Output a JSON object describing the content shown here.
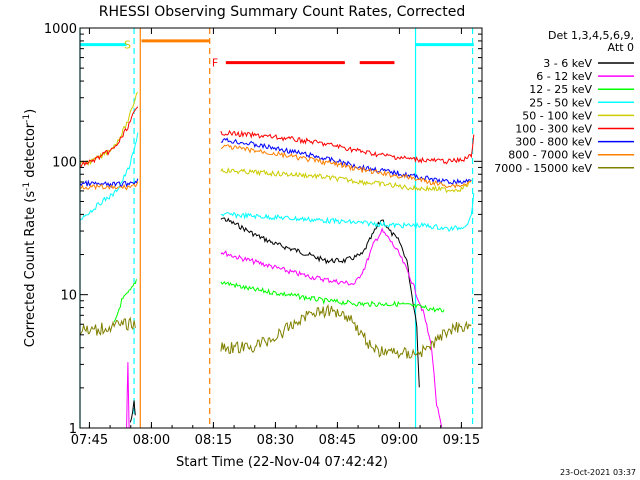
{
  "chart_data": {
    "type": "line",
    "title": "RHESSI Observing Summary Count Rates, Corrected",
    "xlabel": "Start Time (22-Nov-04 07:42:42)",
    "ylabel_main": "Corrected Count Rate (s",
    "ylabel_sup1": "-1",
    "ylabel_mid": " detector",
    "ylabel_sup2": "-1",
    "ylabel_end": ")",
    "yscale": "log",
    "ylim": [
      1,
      1000
    ],
    "xlim": [
      7.712,
      9.333
    ],
    "x_ticks": [
      {
        "x": 7.75,
        "label": "07:45"
      },
      {
        "x": 8.0,
        "label": "08:00"
      },
      {
        "x": 8.25,
        "label": "08:15"
      },
      {
        "x": 8.5,
        "label": "08:30"
      },
      {
        "x": 8.75,
        "label": "08:45"
      },
      {
        "x": 9.0,
        "label": "09:00"
      },
      {
        "x": 9.25,
        "label": "09:15"
      }
    ],
    "y_ticks": [
      {
        "y": 1,
        "label": "1"
      },
      {
        "y": 10,
        "label": "10"
      },
      {
        "y": 100,
        "label": "100"
      },
      {
        "y": 1000,
        "label": "1000"
      }
    ],
    "legend": {
      "header1": "Det 1,3,4,5,6,9,",
      "header2": "Att 0",
      "position": "right"
    },
    "series": [
      {
        "name": "3 - 6 keV",
        "color": "#000000",
        "segments": [
          [
            [
              7.915,
              1.1
            ],
            [
              7.925,
              1.3
            ],
            [
              7.93,
              1.6
            ],
            [
              7.935,
              1.2
            ]
          ],
          [
            [
              8.28,
              38
            ],
            [
              8.35,
              33
            ],
            [
              8.42,
              28
            ],
            [
              8.5,
              24
            ],
            [
              8.6,
              21
            ],
            [
              8.7,
              18
            ],
            [
              8.78,
              18
            ],
            [
              8.85,
              20
            ],
            [
              8.9,
              30
            ],
            [
              8.93,
              37
            ],
            [
              8.96,
              30
            ],
            [
              9.0,
              25
            ],
            [
              9.03,
              18
            ],
            [
              9.05,
              10
            ],
            [
              9.07,
              6
            ],
            [
              9.08,
              2
            ]
          ]
        ]
      },
      {
        "name": "6 - 12 keV",
        "color": "#ff00ff",
        "segments": [
          [
            [
              7.9,
              1.0
            ],
            [
              7.905,
              3.2
            ],
            [
              7.91,
              1.0
            ]
          ],
          [
            [
              8.28,
              21
            ],
            [
              8.35,
              19
            ],
            [
              8.45,
              17
            ],
            [
              8.55,
              15
            ],
            [
              8.65,
              13.5
            ],
            [
              8.75,
              12.5
            ],
            [
              8.82,
              12
            ],
            [
              8.86,
              16
            ],
            [
              8.9,
              25
            ],
            [
              8.93,
              30
            ],
            [
              8.96,
              26
            ],
            [
              9.0,
              20
            ],
            [
              9.04,
              14
            ],
            [
              9.07,
              10
            ],
            [
              9.1,
              7
            ],
            [
              9.13,
              4
            ],
            [
              9.15,
              1.5
            ],
            [
              9.17,
              1.0
            ]
          ]
        ]
      },
      {
        "name": "12 - 25 keV",
        "color": "#00ff00",
        "segments": [
          [
            [
              7.85,
              6
            ],
            [
              7.88,
              9
            ],
            [
              7.92,
              11
            ],
            [
              7.94,
              13
            ]
          ],
          [
            [
              8.28,
              12.5
            ],
            [
              8.4,
              11
            ],
            [
              8.55,
              10
            ],
            [
              8.7,
              9
            ],
            [
              8.85,
              8.5
            ],
            [
              9.0,
              8.5
            ],
            [
              9.1,
              8
            ],
            [
              9.18,
              7.5
            ]
          ]
        ]
      },
      {
        "name": "25 - 50 keV",
        "color": "#00ffff",
        "segments": [
          [
            [
              7.712,
              37
            ],
            [
              7.76,
              43
            ],
            [
              7.8,
              50
            ],
            [
              7.85,
              57
            ],
            [
              7.88,
              70
            ],
            [
              7.91,
              90
            ],
            [
              7.94,
              140
            ],
            [
              7.945,
              170
            ]
          ],
          [
            [
              8.28,
              40
            ],
            [
              8.4,
              39
            ],
            [
              8.5,
              38
            ],
            [
              8.6,
              37
            ],
            [
              8.7,
              36
            ],
            [
              8.8,
              35
            ],
            [
              8.9,
              34
            ],
            [
              9.0,
              33
            ],
            [
              9.1,
              33
            ],
            [
              9.16,
              32
            ],
            [
              9.2,
              31
            ],
            [
              9.25,
              32
            ],
            [
              9.28,
              35
            ],
            [
              9.295,
              45
            ],
            [
              9.3,
              60
            ]
          ]
        ]
      },
      {
        "name": "50 - 100 keV",
        "color": "#cccc00",
        "segments": [
          [
            [
              7.712,
              95
            ],
            [
              7.76,
              100
            ],
            [
              7.8,
              110
            ],
            [
              7.85,
              130
            ],
            [
              7.88,
              160
            ],
            [
              7.91,
              210
            ],
            [
              7.93,
              280
            ],
            [
              7.945,
              340
            ]
          ],
          [
            [
              8.28,
              86
            ],
            [
              8.35,
              84
            ],
            [
              8.45,
              82
            ],
            [
              8.55,
              80
            ],
            [
              8.65,
              78
            ],
            [
              8.75,
              74
            ],
            [
              8.85,
              70
            ],
            [
              8.95,
              67
            ],
            [
              9.05,
              63
            ],
            [
              9.15,
              62
            ],
            [
              9.2,
              61
            ],
            [
              9.25,
              62
            ],
            [
              9.29,
              70
            ]
          ]
        ]
      },
      {
        "name": "100 - 300 keV",
        "color": "#ff0000",
        "segments": [
          [
            [
              7.712,
              94
            ],
            [
              7.76,
              100
            ],
            [
              7.8,
              110
            ],
            [
              7.85,
              125
            ],
            [
              7.88,
              150
            ],
            [
              7.91,
              190
            ],
            [
              7.93,
              230
            ],
            [
              7.945,
              250
            ]
          ],
          [
            [
              8.28,
              165
            ],
            [
              8.35,
              160
            ],
            [
              8.45,
              155
            ],
            [
              8.55,
              148
            ],
            [
              8.65,
              140
            ],
            [
              8.75,
              130
            ],
            [
              8.85,
              118
            ],
            [
              8.95,
              110
            ],
            [
              9.05,
              104
            ],
            [
              9.15,
              101
            ],
            [
              9.2,
              100
            ],
            [
              9.25,
              102
            ],
            [
              9.29,
              110
            ],
            [
              9.3,
              160
            ]
          ]
        ]
      },
      {
        "name": "300 - 800 keV",
        "color": "#0000ff",
        "segments": [
          [
            [
              7.712,
              68
            ],
            [
              7.76,
              68
            ],
            [
              7.8,
              67
            ],
            [
              7.85,
              67
            ],
            [
              7.9,
              68
            ],
            [
              7.93,
              70
            ],
            [
              7.945,
              72
            ]
          ],
          [
            [
              8.28,
              145
            ],
            [
              8.35,
              140
            ],
            [
              8.45,
              130
            ],
            [
              8.55,
              120
            ],
            [
              8.65,
              110
            ],
            [
              8.75,
              100
            ],
            [
              8.85,
              90
            ],
            [
              8.95,
              84
            ],
            [
              9.05,
              78
            ],
            [
              9.15,
              72
            ],
            [
              9.2,
              70
            ],
            [
              9.25,
              70
            ],
            [
              9.29,
              72
            ]
          ]
        ]
      },
      {
        "name": "800 - 7000 keV",
        "color": "#ff8000",
        "segments": [
          [
            [
              7.712,
              65
            ],
            [
              7.76,
              64
            ],
            [
              7.8,
              64
            ],
            [
              7.85,
              63
            ],
            [
              7.9,
              64
            ],
            [
              7.93,
              66
            ],
            [
              7.945,
              68
            ]
          ],
          [
            [
              8.28,
              130
            ],
            [
              8.35,
              125
            ],
            [
              8.45,
              118
            ],
            [
              8.55,
              110
            ],
            [
              8.65,
              102
            ],
            [
              8.75,
              95
            ],
            [
              8.85,
              86
            ],
            [
              8.95,
              80
            ],
            [
              9.05,
              75
            ],
            [
              9.15,
              68
            ],
            [
              9.2,
              66
            ],
            [
              9.25,
              66
            ],
            [
              9.29,
              70
            ]
          ]
        ]
      },
      {
        "name": "7000 - 15000 keV",
        "color": "#808000",
        "segments": [
          [
            [
              7.712,
              5.5
            ],
            [
              7.76,
              5.3
            ],
            [
              7.8,
              5.6
            ],
            [
              7.85,
              5.8
            ],
            [
              7.9,
              6.0
            ],
            [
              7.935,
              6.1
            ]
          ],
          [
            [
              8.28,
              4.0
            ],
            [
              8.4,
              4.0
            ],
            [
              8.5,
              4.8
            ],
            [
              8.6,
              6.5
            ],
            [
              8.65,
              7.5
            ],
            [
              8.75,
              7.5
            ],
            [
              8.8,
              6.8
            ],
            [
              8.85,
              5.0
            ],
            [
              8.9,
              3.8
            ],
            [
              9.05,
              3.6
            ],
            [
              9.1,
              3.8
            ],
            [
              9.15,
              4.5
            ],
            [
              9.2,
              5.5
            ],
            [
              9.25,
              5.8
            ],
            [
              9.29,
              6.0
            ]
          ]
        ]
      }
    ],
    "flag_bars": [
      {
        "label": "S",
        "label_color": "#cccc00",
        "color": "#00ffff",
        "y": 750,
        "segments": [
          [
            7.712,
            7.9
          ],
          [
            9.065,
            9.3
          ]
        ]
      },
      {
        "label": "",
        "label_color": "",
        "color": "#ff8000",
        "y": 800,
        "segments": [
          [
            7.96,
            8.235
          ]
        ]
      },
      {
        "label": "F",
        "label_color": "#ff0000",
        "color": "#ff0000",
        "y": 550,
        "segments": [
          [
            8.3,
            8.78
          ],
          [
            8.84,
            8.98
          ]
        ]
      }
    ],
    "vertical_markers": [
      {
        "x": 7.712,
        "color": "#00ffff",
        "style": "solid"
      },
      {
        "x": 7.93,
        "color": "#00ffff",
        "style": "dashed"
      },
      {
        "x": 7.955,
        "color": "#ff8000",
        "style": "solid"
      },
      {
        "x": 8.235,
        "color": "#ff8000",
        "style": "dashed"
      },
      {
        "x": 9.065,
        "color": "#00ffff",
        "style": "solid"
      },
      {
        "x": 9.295,
        "color": "#00ffff",
        "style": "dashed"
      }
    ]
  },
  "footer": {
    "timestamp": "23-Oct-2021 03:37"
  }
}
